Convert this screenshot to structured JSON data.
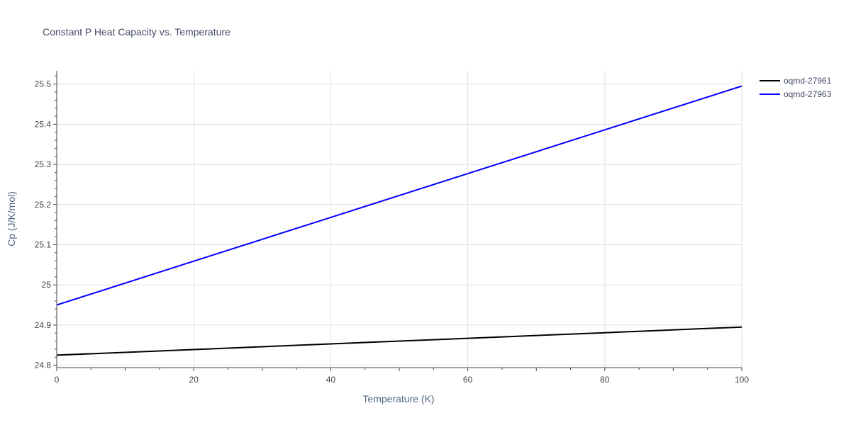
{
  "chart_data": {
    "type": "line",
    "title": "Constant P Heat Capacity vs. Temperature",
    "xlabel": "Temperature (K)",
    "ylabel": "Cp (J/K/mol)",
    "xlim": [
      0,
      100
    ],
    "ylim": [
      24.794,
      25.533
    ],
    "x_ticks": [
      0,
      20,
      40,
      60,
      80,
      100
    ],
    "x_tick_labels": [
      "0",
      "20",
      "40",
      "60",
      "80",
      "100"
    ],
    "y_ticks": [
      24.8,
      24.9,
      25.0,
      25.1,
      25.2,
      25.3,
      25.4,
      25.5
    ],
    "y_tick_labels": [
      "24.8",
      "24.9",
      "25",
      "25.1",
      "25.2",
      "25.3",
      "25.4",
      "25.5"
    ],
    "grid": true,
    "legend_position": "top-right",
    "series": [
      {
        "name": "oqmd-27961",
        "color": "#000000",
        "x": [
          0,
          20,
          40,
          60,
          80,
          100
        ],
        "y": [
          24.825,
          24.839,
          24.853,
          24.867,
          24.881,
          24.895
        ]
      },
      {
        "name": "oqmd-27963",
        "color": "#0000ff",
        "x": [
          0,
          20,
          40,
          60,
          80,
          100
        ],
        "y": [
          24.95,
          25.059,
          25.168,
          25.277,
          25.386,
          25.495
        ]
      }
    ]
  }
}
